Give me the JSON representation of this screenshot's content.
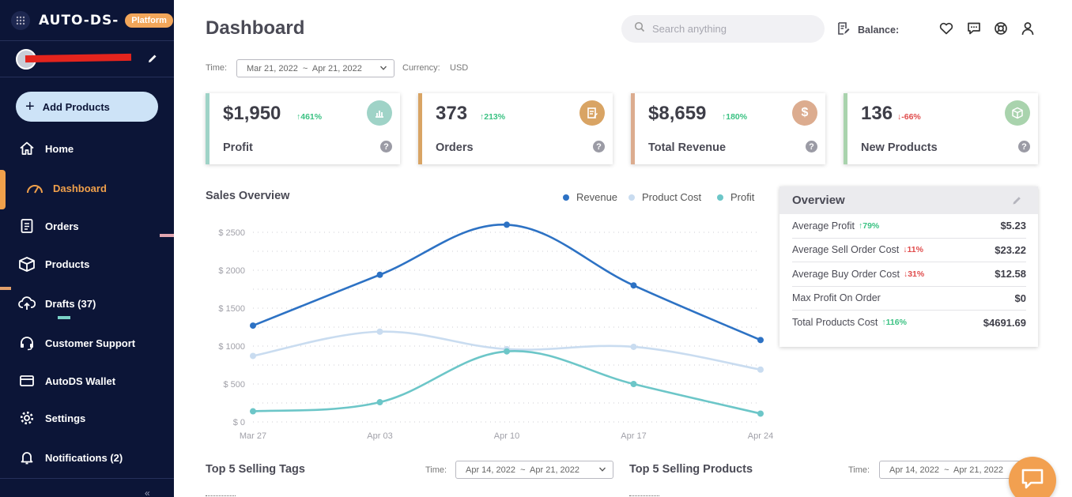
{
  "sidebar": {
    "brand": "AUTO-DS-",
    "platform_badge": "Platform",
    "add_products": "Add Products",
    "items": [
      {
        "label": "Home",
        "icon": "home-icon"
      },
      {
        "label": "Dashboard",
        "icon": "gauge-icon",
        "active": true
      },
      {
        "label": "Orders",
        "icon": "clipboard-icon"
      },
      {
        "label": "Products",
        "icon": "box-icon"
      },
      {
        "label": "Drafts (37)",
        "icon": "cloud-upload-icon"
      },
      {
        "label": "Customer Support",
        "icon": "headset-icon"
      },
      {
        "label": "AutoDS Wallet",
        "icon": "wallet-icon"
      },
      {
        "label": "Settings",
        "icon": "gear-icon"
      },
      {
        "label": "Notifications (2)",
        "icon": "bell-icon"
      }
    ],
    "accent_color": "#f0a04b",
    "bg_color": "#0c1537"
  },
  "header": {
    "title": "Dashboard",
    "search_placeholder": "Search anything",
    "balance_label": "Balance:"
  },
  "filters": {
    "time_label": "Time:",
    "date_range": "Mar 21, 2022  ~  Apr 21, 2022",
    "currency_label": "Currency:",
    "currency_value": "USD"
  },
  "kpis": [
    {
      "value": "$1,950",
      "change": "461%",
      "direction": "up",
      "label": "Profit",
      "color": "#9fd3c7",
      "icon": "bar-chart-icon"
    },
    {
      "value": "373",
      "change": "213%",
      "direction": "up",
      "label": "Orders",
      "color": "#d9a464",
      "icon": "document-icon"
    },
    {
      "value": "$8,659",
      "change": "180%",
      "direction": "up",
      "label": "Total Revenue",
      "color": "#dcac8f",
      "icon": "dollar-icon"
    },
    {
      "value": "136",
      "change": "-66%",
      "direction": "down",
      "label": "New Products",
      "color": "#a9d3ad",
      "icon": "cube-icon"
    }
  ],
  "sales_overview": {
    "title": "Sales Overview",
    "legend": [
      "Revenue",
      "Product Cost",
      "Profit"
    ]
  },
  "chart_data": {
    "type": "line",
    "x": [
      "Mar 27",
      "Apr 03",
      "Apr 10",
      "Apr 17",
      "Apr 24"
    ],
    "y_ticks": [
      "$ 2500",
      "$ 2000",
      "$ 1500",
      "$ 1000",
      "$ 500",
      "$ 0"
    ],
    "ylim": [
      0,
      2500
    ],
    "series": [
      {
        "name": "Revenue",
        "values": [
          1270,
          1940,
          2600,
          1800,
          1080
        ],
        "color": "#2d72c4"
      },
      {
        "name": "Product Cost",
        "values": [
          870,
          1190,
          960,
          990,
          690
        ],
        "color": "#c9dcf0"
      },
      {
        "name": "Profit",
        "values": [
          140,
          260,
          930,
          500,
          110
        ],
        "color": "#6cc6c8"
      }
    ],
    "grid": "dotted horizontal"
  },
  "overview": {
    "title": "Overview",
    "rows": [
      {
        "name": "Average Profit",
        "change": "79%",
        "direction": "up",
        "value": "$5.23"
      },
      {
        "name": "Average Sell Order Cost",
        "change": "11%",
        "direction": "down",
        "value": "$23.22"
      },
      {
        "name": "Average Buy Order Cost",
        "change": "31%",
        "direction": "down",
        "value": "$12.58"
      },
      {
        "name": "Max Profit On Order",
        "change": "",
        "direction": "",
        "value": "$0"
      },
      {
        "name": "Total Products Cost",
        "change": "116%",
        "direction": "up",
        "value": "$4691.69"
      }
    ]
  },
  "bottom": {
    "tags_title": "Top 5 Selling Tags",
    "tags_time_label": "Time:",
    "tags_date_range": "Apr 14, 2022  ~  Apr 21, 2022",
    "products_title": "Top 5 Selling Products",
    "products_time_label": "Time:",
    "products_date_range": "Apr 14, 2022  ~  Apr 21, 2022"
  }
}
